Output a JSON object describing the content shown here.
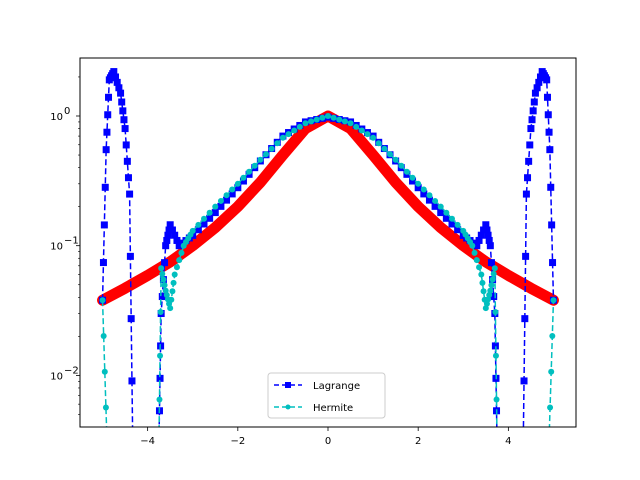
{
  "chart_data": {
    "type": "line",
    "x_axis": {
      "range": [
        -5.5,
        5.5
      ],
      "ticks": [
        -4,
        -2,
        0,
        2,
        4
      ],
      "tick_labels": [
        "−4",
        "−2",
        "0",
        "2",
        "4"
      ]
    },
    "y_axis": {
      "scale": "log",
      "range": [
        0.004,
        2.8
      ],
      "ticks": [
        0.01,
        0.1,
        1.0
      ],
      "tick_labels": [
        "10",
        "10",
        "10"
      ],
      "tick_exponents": [
        "−2",
        "−1",
        "0"
      ]
    },
    "grid": false,
    "legend": {
      "placement": "lower center"
    },
    "series": [
      {
        "color": "#ff0000",
        "style": "thick solid",
        "x": [
          -5,
          -4.5,
          -4,
          -3.5,
          -3,
          -2.5,
          -2,
          -1.5,
          -1,
          -0.5,
          0,
          0.5,
          1,
          1.5,
          2,
          2.5,
          3,
          3.5,
          4,
          4.5,
          5
        ],
        "values": [
          0.038,
          0.047,
          0.059,
          0.075,
          0.1,
          0.138,
          0.2,
          0.308,
          0.5,
          0.8,
          1.0,
          0.8,
          0.5,
          0.308,
          0.2,
          0.138,
          0.1,
          0.075,
          0.059,
          0.047,
          0.038
        ]
      },
      {
        "name": "Lagrange",
        "color": "#0000ff",
        "style": "dashed, square markers",
        "x": [
          -5,
          -4.92,
          -4.85,
          -4.75,
          -4.6,
          -4.5,
          -4.4,
          -4.33,
          -4.2,
          -4.0,
          -3.85,
          -3.75,
          -3.7,
          -3.6,
          -3.5,
          -3.3,
          -3.0,
          -2.5,
          -2.0,
          -1.5,
          -1.0,
          -0.5,
          0,
          0.5,
          1.0,
          1.5,
          2.0,
          2.5,
          3.0,
          3.3,
          3.5,
          3.6,
          3.7,
          3.75,
          3.85,
          4.0,
          4.2,
          4.33,
          4.4,
          4.5,
          4.6,
          4.75,
          4.85,
          4.92,
          5
        ],
        "values": [
          0.038,
          0.55,
          1.9,
          2.2,
          1.5,
          0.8,
          0.25,
          0.003,
          0.003,
          0.003,
          0.003,
          0.003,
          0.03,
          0.1,
          0.145,
          0.1,
          0.12,
          0.18,
          0.28,
          0.45,
          0.7,
          0.9,
          0.98,
          0.9,
          0.7,
          0.45,
          0.28,
          0.18,
          0.12,
          0.1,
          0.145,
          0.1,
          0.03,
          0.003,
          0.003,
          0.003,
          0.003,
          0.003,
          0.25,
          0.8,
          1.5,
          2.2,
          1.9,
          0.55,
          0.038
        ]
      },
      {
        "name": "Hermite",
        "color": "#00bfbf",
        "style": "dashed, dot markers",
        "x": [
          -5,
          -4.9,
          -4.6,
          -4.4,
          -4.33,
          -4.3,
          -3.8,
          -3.75,
          -3.7,
          -3.6,
          -3.5,
          -3.4,
          -3.2,
          -3.0,
          -2.5,
          -2.0,
          -1.5,
          -1.0,
          -0.5,
          0,
          0.5,
          1.0,
          1.5,
          2.0,
          2.5,
          3.0,
          3.2,
          3.4,
          3.5,
          3.6,
          3.7,
          3.75,
          3.8,
          4.3,
          4.33,
          4.4,
          4.6,
          4.9,
          5
        ],
        "values": [
          0.038,
          0.003,
          0.003,
          0.003,
          0.003,
          0.003,
          0.003,
          0.003,
          0.067,
          0.045,
          0.033,
          0.06,
          0.1,
          0.13,
          0.2,
          0.3,
          0.46,
          0.68,
          0.88,
          1.0,
          0.88,
          0.68,
          0.46,
          0.3,
          0.2,
          0.13,
          0.1,
          0.06,
          0.033,
          0.045,
          0.067,
          0.003,
          0.003,
          0.003,
          0.003,
          0.003,
          0.003,
          0.003,
          0.038
        ]
      }
    ]
  }
}
